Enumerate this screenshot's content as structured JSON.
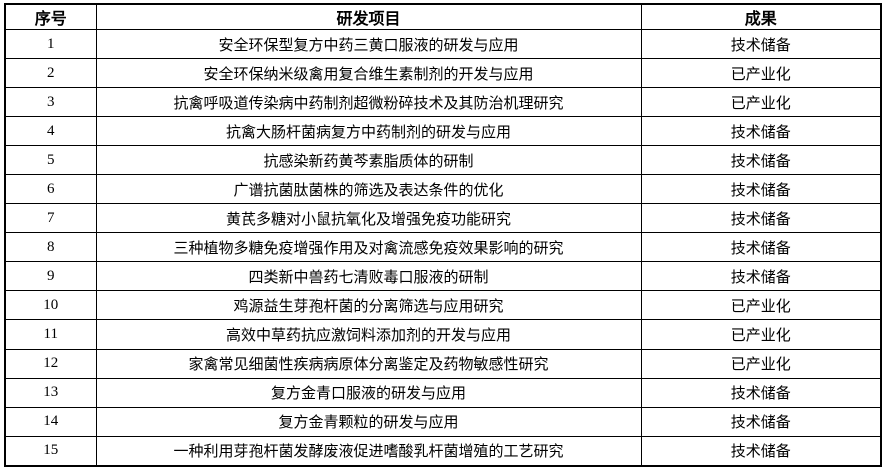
{
  "table": {
    "headers": {
      "index": "序号",
      "project": "研发项目",
      "result": "成果"
    },
    "rows": [
      {
        "index": "1",
        "project": "安全环保型复方中药三黄口服液的研发与应用",
        "result": "技术储备"
      },
      {
        "index": "2",
        "project": "安全环保纳米级禽用复合维生素制剂的开发与应用",
        "result": "已产业化"
      },
      {
        "index": "3",
        "project": "抗禽呼吸道传染病中药制剂超微粉碎技术及其防治机理研究",
        "result": "已产业化"
      },
      {
        "index": "4",
        "project": "抗禽大肠杆菌病复方中药制剂的研发与应用",
        "result": "技术储备"
      },
      {
        "index": "5",
        "project": "抗感染新药黄芩素脂质体的研制",
        "result": "技术储备"
      },
      {
        "index": "6",
        "project": "广谱抗菌肽菌株的筛选及表达条件的优化",
        "result": "技术储备"
      },
      {
        "index": "7",
        "project": "黄芪多糖对小鼠抗氧化及增强免疫功能研究",
        "result": "技术储备"
      },
      {
        "index": "8",
        "project": "三种植物多糖免疫增强作用及对禽流感免疫效果影响的研究",
        "result": "技术储备"
      },
      {
        "index": "9",
        "project": "四类新中兽药七清败毒口服液的研制",
        "result": "技术储备"
      },
      {
        "index": "10",
        "project": "鸡源益生芽孢杆菌的分离筛选与应用研究",
        "result": "已产业化"
      },
      {
        "index": "11",
        "project": "高效中草药抗应激饲料添加剂的开发与应用",
        "result": "已产业化"
      },
      {
        "index": "12",
        "project": "家禽常见细菌性疾病病原体分离鉴定及药物敏感性研究",
        "result": "已产业化"
      },
      {
        "index": "13",
        "project": "复方金青口服液的研发与应用",
        "result": "技术储备"
      },
      {
        "index": "14",
        "project": "复方金青颗粒的研发与应用",
        "result": "技术储备"
      },
      {
        "index": "15",
        "project": "一种利用芽孢杆菌发酵废液促进嗜酸乳杆菌增殖的工艺研究",
        "result": "技术储备"
      }
    ],
    "text_color": "#000000",
    "border_color": "#000000",
    "background_color": "#ffffff"
  }
}
